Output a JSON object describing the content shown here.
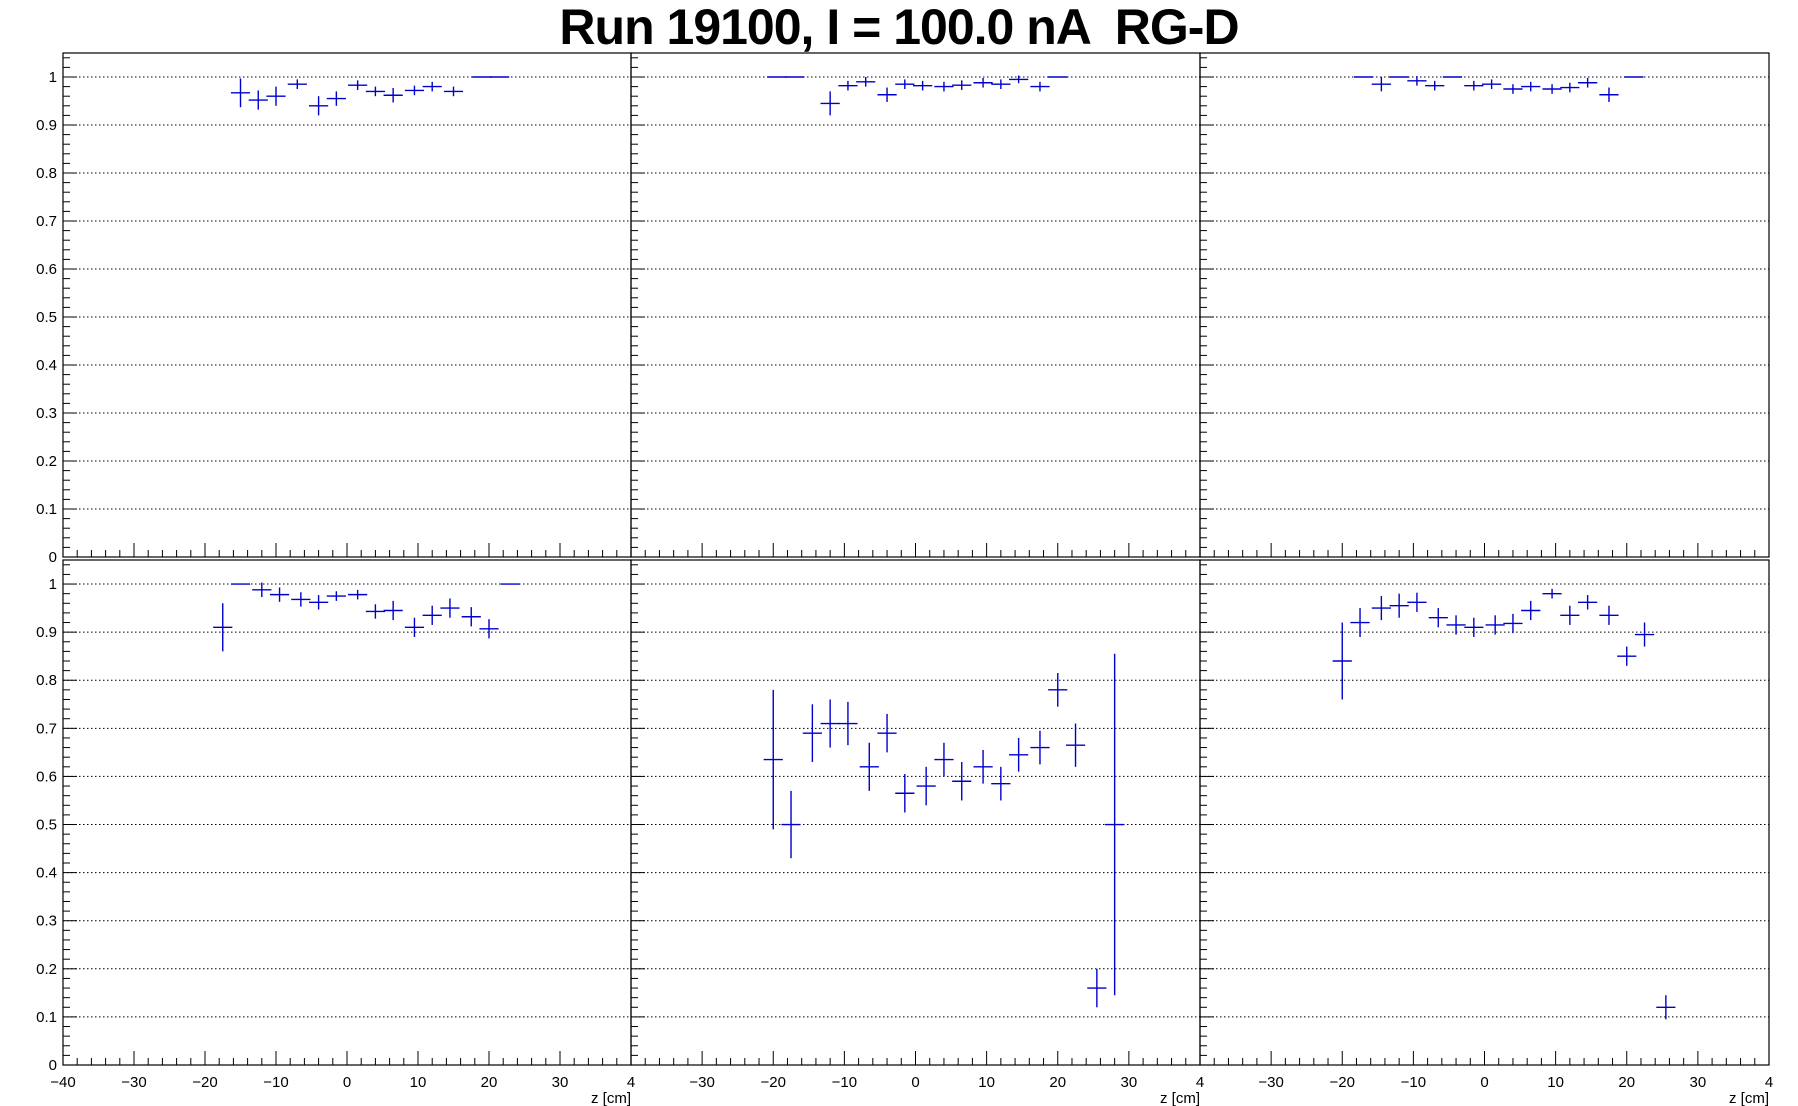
{
  "title": "Run 19100, I = 100.0 nA  RG-D",
  "colors": {
    "marker": "#0000cc",
    "axis": "#000000",
    "grid": "#000000",
    "background": "#ffffff"
  },
  "chart_data": [
    {
      "panel": "top-left",
      "type": "scatter",
      "error_bars": true,
      "xlim": [
        -40,
        40
      ],
      "ylim": [
        0,
        1.05
      ],
      "grid": "horizontal dotted",
      "x_tick_labels": [],
      "y_tick_labels": [
        "0",
        "0.1",
        "0.2",
        "0.3",
        "0.4",
        "0.5",
        "0.6",
        "0.7",
        "0.8",
        "0.9",
        "1"
      ],
      "xlabel": "",
      "points": [
        {
          "x": -15,
          "y": 0.967,
          "err": 0.03
        },
        {
          "x": -12.5,
          "y": 0.952,
          "err": 0.02
        },
        {
          "x": -10,
          "y": 0.96,
          "err": 0.02
        },
        {
          "x": -7,
          "y": 0.985,
          "err": 0.01
        },
        {
          "x": -4,
          "y": 0.94,
          "err": 0.02
        },
        {
          "x": -1.5,
          "y": 0.955,
          "err": 0.015
        },
        {
          "x": 1.5,
          "y": 0.983,
          "err": 0.01
        },
        {
          "x": 4,
          "y": 0.97,
          "err": 0.01
        },
        {
          "x": 6.5,
          "y": 0.962,
          "err": 0.015
        },
        {
          "x": 9.5,
          "y": 0.972,
          "err": 0.01
        },
        {
          "x": 12,
          "y": 0.98,
          "err": 0.01
        },
        {
          "x": 15,
          "y": 0.97,
          "err": 0.01
        },
        {
          "x": 19,
          "y": 1.0,
          "err": 0.0
        },
        {
          "x": 21.5,
          "y": 1.0,
          "err": 0.0
        }
      ]
    },
    {
      "panel": "top-center",
      "type": "scatter",
      "error_bars": true,
      "xlim": [
        -40,
        40
      ],
      "ylim": [
        0,
        1.05
      ],
      "grid": "horizontal dotted",
      "x_tick_labels": [],
      "y_tick_labels": [],
      "xlabel": "",
      "points": [
        {
          "x": -19.5,
          "y": 1.0,
          "err": 0.0
        },
        {
          "x": -17,
          "y": 1.0,
          "err": 0.0
        },
        {
          "x": -12,
          "y": 0.945,
          "err": 0.025
        },
        {
          "x": -9.5,
          "y": 0.982,
          "err": 0.01
        },
        {
          "x": -7,
          "y": 0.99,
          "err": 0.01
        },
        {
          "x": -4,
          "y": 0.963,
          "err": 0.015
        },
        {
          "x": -1.5,
          "y": 0.985,
          "err": 0.01
        },
        {
          "x": 1,
          "y": 0.982,
          "err": 0.01
        },
        {
          "x": 4,
          "y": 0.98,
          "err": 0.01
        },
        {
          "x": 6.5,
          "y": 0.983,
          "err": 0.01
        },
        {
          "x": 9.5,
          "y": 0.988,
          "err": 0.01
        },
        {
          "x": 12,
          "y": 0.985,
          "err": 0.01
        },
        {
          "x": 14.5,
          "y": 0.995,
          "err": 0.008
        },
        {
          "x": 17.5,
          "y": 0.98,
          "err": 0.01
        },
        {
          "x": 20,
          "y": 1.0,
          "err": 0.0
        }
      ]
    },
    {
      "panel": "top-right",
      "type": "scatter",
      "error_bars": true,
      "xlim": [
        -40,
        40
      ],
      "ylim": [
        0,
        1.05
      ],
      "grid": "horizontal dotted",
      "x_tick_labels": [],
      "y_tick_labels": [],
      "xlabel": "",
      "points": [
        {
          "x": -17,
          "y": 1.0,
          "err": 0.0
        },
        {
          "x": -14.5,
          "y": 0.985,
          "err": 0.015
        },
        {
          "x": -12,
          "y": 1.0,
          "err": 0.0
        },
        {
          "x": -9.5,
          "y": 0.992,
          "err": 0.01
        },
        {
          "x": -7,
          "y": 0.982,
          "err": 0.01
        },
        {
          "x": -4.5,
          "y": 1.0,
          "err": 0.0
        },
        {
          "x": -1.5,
          "y": 0.982,
          "err": 0.01
        },
        {
          "x": 1,
          "y": 0.985,
          "err": 0.01
        },
        {
          "x": 4,
          "y": 0.975,
          "err": 0.01
        },
        {
          "x": 6.5,
          "y": 0.98,
          "err": 0.01
        },
        {
          "x": 9.5,
          "y": 0.975,
          "err": 0.01
        },
        {
          "x": 12,
          "y": 0.978,
          "err": 0.01
        },
        {
          "x": 14.5,
          "y": 0.988,
          "err": 0.01
        },
        {
          "x": 17.5,
          "y": 0.963,
          "err": 0.015
        },
        {
          "x": 21,
          "y": 1.0,
          "err": 0.0
        }
      ]
    },
    {
      "panel": "bottom-left",
      "type": "scatter",
      "error_bars": true,
      "xlim": [
        -40,
        40
      ],
      "ylim": [
        0,
        1.05
      ],
      "grid": "horizontal dotted",
      "x_tick_labels": [
        "−40",
        "−30",
        "−20",
        "−10",
        "0",
        "10",
        "20",
        "30",
        "4"
      ],
      "y_tick_labels": [
        "0",
        "0.1",
        "0.2",
        "0.3",
        "0.4",
        "0.5",
        "0.6",
        "0.7",
        "0.8",
        "0.9",
        "1"
      ],
      "xlabel": "z [cm]",
      "points": [
        {
          "x": -17.5,
          "y": 0.91,
          "err": 0.05
        },
        {
          "x": -15,
          "y": 1.0,
          "err": 0.0
        },
        {
          "x": -12,
          "y": 0.988,
          "err": 0.015
        },
        {
          "x": -9.5,
          "y": 0.978,
          "err": 0.015
        },
        {
          "x": -6.5,
          "y": 0.968,
          "err": 0.015
        },
        {
          "x": -4,
          "y": 0.962,
          "err": 0.015
        },
        {
          "x": -1.5,
          "y": 0.975,
          "err": 0.01
        },
        {
          "x": 1.5,
          "y": 0.978,
          "err": 0.01
        },
        {
          "x": 4,
          "y": 0.943,
          "err": 0.015
        },
        {
          "x": 6.5,
          "y": 0.945,
          "err": 0.02
        },
        {
          "x": 9.5,
          "y": 0.91,
          "err": 0.02
        },
        {
          "x": 12,
          "y": 0.935,
          "err": 0.02
        },
        {
          "x": 14.5,
          "y": 0.95,
          "err": 0.02
        },
        {
          "x": 17.5,
          "y": 0.932,
          "err": 0.02
        },
        {
          "x": 20,
          "y": 0.907,
          "err": 0.02
        },
        {
          "x": 23,
          "y": 1.0,
          "err": 0.0
        }
      ]
    },
    {
      "panel": "bottom-center",
      "type": "scatter",
      "error_bars": true,
      "xlim": [
        -40,
        40
      ],
      "ylim": [
        0,
        1.05
      ],
      "grid": "horizontal dotted",
      "x_tick_labels": [
        "−30",
        "−20",
        "−10",
        "0",
        "10",
        "20",
        "30",
        "4"
      ],
      "y_tick_labels": [],
      "xlabel": "z [cm]",
      "points": [
        {
          "x": -20,
          "y": 0.635,
          "err": 0.145
        },
        {
          "x": -17.5,
          "y": 0.5,
          "err": 0.07
        },
        {
          "x": -14.5,
          "y": 0.69,
          "err": 0.06
        },
        {
          "x": -12,
          "y": 0.71,
          "err": 0.05
        },
        {
          "x": -9.5,
          "y": 0.71,
          "err": 0.045
        },
        {
          "x": -6.5,
          "y": 0.62,
          "err": 0.05
        },
        {
          "x": -4,
          "y": 0.69,
          "err": 0.04
        },
        {
          "x": -1.5,
          "y": 0.565,
          "err": 0.04
        },
        {
          "x": 1.5,
          "y": 0.58,
          "err": 0.04
        },
        {
          "x": 4,
          "y": 0.635,
          "err": 0.035
        },
        {
          "x": 6.5,
          "y": 0.59,
          "err": 0.04
        },
        {
          "x": 9.5,
          "y": 0.62,
          "err": 0.035
        },
        {
          "x": 12,
          "y": 0.585,
          "err": 0.035
        },
        {
          "x": 14.5,
          "y": 0.645,
          "err": 0.035
        },
        {
          "x": 17.5,
          "y": 0.66,
          "err": 0.035
        },
        {
          "x": 20,
          "y": 0.78,
          "err": 0.035
        },
        {
          "x": 22.5,
          "y": 0.665,
          "err": 0.045
        },
        {
          "x": 25.5,
          "y": 0.16,
          "err": 0.04
        },
        {
          "x": 28,
          "y": 0.5,
          "err": 0.355
        }
      ]
    },
    {
      "panel": "bottom-right",
      "type": "scatter",
      "error_bars": true,
      "xlim": [
        -40,
        40
      ],
      "ylim": [
        0,
        1.05
      ],
      "grid": "horizontal dotted",
      "x_tick_labels": [
        "−30",
        "−20",
        "−10",
        "0",
        "10",
        "20",
        "30",
        "4"
      ],
      "y_tick_labels": [],
      "xlabel": "z [cm]",
      "points": [
        {
          "x": -20,
          "y": 0.84,
          "err": 0.08
        },
        {
          "x": -17.5,
          "y": 0.92,
          "err": 0.03
        },
        {
          "x": -14.5,
          "y": 0.95,
          "err": 0.025
        },
        {
          "x": -12,
          "y": 0.955,
          "err": 0.025
        },
        {
          "x": -9.5,
          "y": 0.962,
          "err": 0.02
        },
        {
          "x": -6.5,
          "y": 0.93,
          "err": 0.02
        },
        {
          "x": -4,
          "y": 0.915,
          "err": 0.02
        },
        {
          "x": -1.5,
          "y": 0.91,
          "err": 0.02
        },
        {
          "x": 1.5,
          "y": 0.915,
          "err": 0.02
        },
        {
          "x": 4,
          "y": 0.918,
          "err": 0.02
        },
        {
          "x": 6.5,
          "y": 0.945,
          "err": 0.02
        },
        {
          "x": 9.5,
          "y": 0.98,
          "err": 0.01
        },
        {
          "x": 12,
          "y": 0.935,
          "err": 0.02
        },
        {
          "x": 14.5,
          "y": 0.962,
          "err": 0.015
        },
        {
          "x": 17.5,
          "y": 0.935,
          "err": 0.02
        },
        {
          "x": 20,
          "y": 0.85,
          "err": 0.02
        },
        {
          "x": 22.5,
          "y": 0.895,
          "err": 0.025
        },
        {
          "x": 25.5,
          "y": 0.12,
          "err": 0.025
        }
      ]
    }
  ]
}
